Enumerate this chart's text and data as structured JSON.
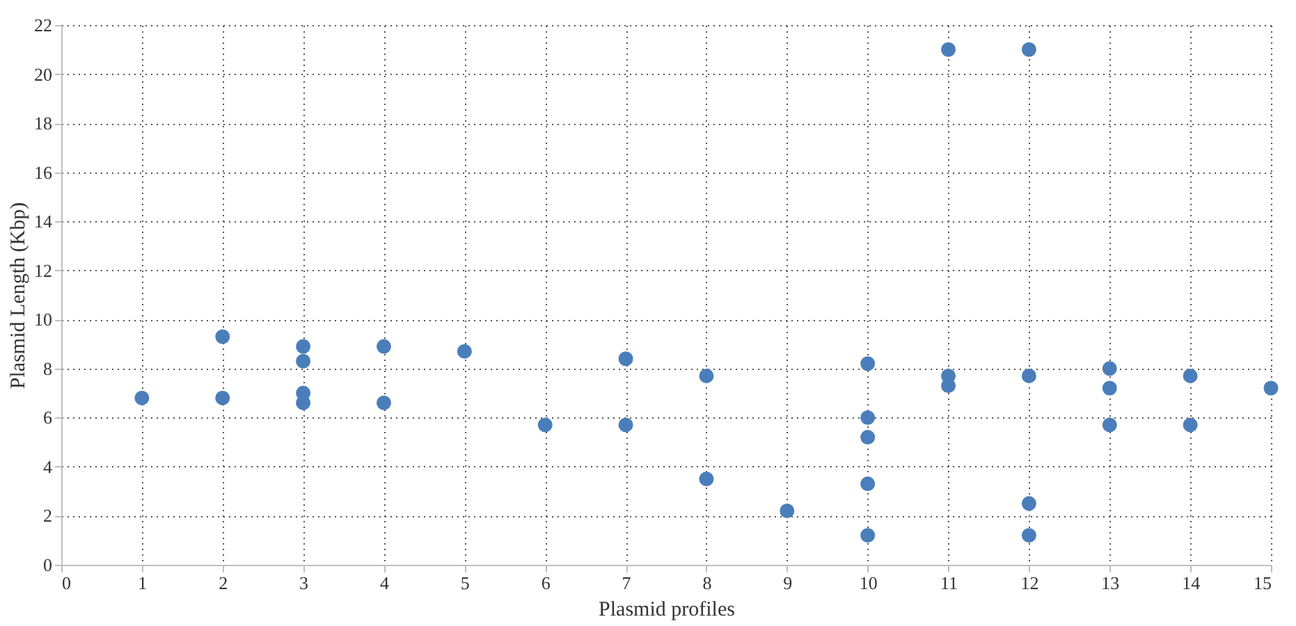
{
  "chart_data": {
    "type": "scatter",
    "xlabel": "Plasmid profiles",
    "ylabel": "Plasmid Length (Kbp)",
    "x": [
      1,
      2,
      2,
      3,
      3,
      3,
      3,
      4,
      4,
      5,
      6,
      7,
      7,
      8,
      8,
      9,
      10,
      10,
      10,
      10,
      10,
      11,
      11,
      11,
      12,
      12,
      12,
      12,
      13,
      13,
      13,
      14,
      14,
      15
    ],
    "series": [
      {
        "color": "#4a7ebb",
        "values": [
          6.8,
          9.3,
          6.8,
          8.9,
          8.3,
          7.0,
          6.6,
          8.9,
          6.6,
          8.7,
          5.7,
          8.4,
          5.7,
          7.7,
          3.5,
          2.2,
          8.2,
          6.0,
          5.2,
          3.3,
          1.2,
          21,
          7.7,
          7.3,
          21,
          7.7,
          2.5,
          1.2,
          8.0,
          7.2,
          5.7,
          7.7,
          5.7,
          7.2
        ]
      }
    ],
    "xlim": [
      0,
      15
    ],
    "xticks": [
      0,
      1,
      2,
      3,
      4,
      5,
      6,
      7,
      8,
      9,
      10,
      11,
      12,
      13,
      14,
      15
    ],
    "ylim": [
      0,
      22
    ],
    "yticks": [
      0,
      2,
      4,
      6,
      8,
      10,
      12,
      14,
      16,
      18,
      20,
      22
    ],
    "grid": true,
    "marker": "circle",
    "legend": false
  }
}
